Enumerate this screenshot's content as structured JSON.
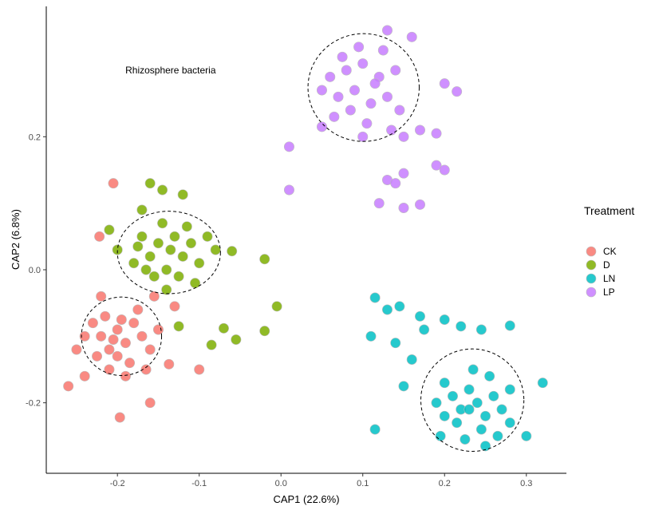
{
  "chart_data": {
    "type": "scatter",
    "title": "",
    "annotation": {
      "text": "Rhizosphere bacteria",
      "x": -0.135,
      "y": 0.3
    },
    "xlabel": "CAP1 (22.6%)",
    "ylabel": "CAP2 (6.8%)",
    "xlim": [
      -0.287,
      0.349
    ],
    "ylim": [
      -0.306,
      0.396
    ],
    "xticks": [
      -0.2,
      -0.1,
      0.0,
      0.1,
      0.2,
      0.3
    ],
    "xtick_labels": [
      "-0.2",
      "-0.1",
      "0.0",
      "0.1",
      "0.2",
      "0.3"
    ],
    "yticks": [
      -0.2,
      0.0,
      0.2
    ],
    "ytick_labels": [
      "-0.2",
      "0.0",
      "0.2"
    ],
    "grid": false,
    "legend": {
      "title": "Treatment",
      "placement": "right"
    },
    "series": [
      {
        "name": "CK",
        "color": "#F8766D",
        "ellipse": {
          "cx": -0.195,
          "cy": -0.1,
          "rx": 0.049,
          "ry": 0.059
        },
        "points": [
          [
            -0.205,
            0.13
          ],
          [
            -0.222,
            0.05
          ],
          [
            -0.26,
            -0.175
          ],
          [
            -0.197,
            -0.222
          ],
          [
            -0.137,
            -0.142
          ],
          [
            -0.1,
            -0.15
          ],
          [
            -0.16,
            -0.2
          ],
          [
            -0.24,
            -0.16
          ],
          [
            -0.25,
            -0.12
          ],
          [
            -0.13,
            -0.055
          ],
          [
            -0.155,
            -0.04
          ],
          [
            -0.22,
            -0.04
          ],
          [
            -0.23,
            -0.08
          ],
          [
            -0.22,
            -0.1
          ],
          [
            -0.21,
            -0.12
          ],
          [
            -0.2,
            -0.09
          ],
          [
            -0.19,
            -0.11
          ],
          [
            -0.18,
            -0.08
          ],
          [
            -0.17,
            -0.1
          ],
          [
            -0.2,
            -0.13
          ],
          [
            -0.185,
            -0.14
          ],
          [
            -0.215,
            -0.07
          ],
          [
            -0.16,
            -0.12
          ],
          [
            -0.175,
            -0.06
          ],
          [
            -0.205,
            -0.105
          ],
          [
            -0.195,
            -0.075
          ],
          [
            -0.225,
            -0.13
          ],
          [
            -0.15,
            -0.09
          ],
          [
            -0.24,
            -0.1
          ],
          [
            -0.19,
            -0.16
          ],
          [
            -0.165,
            -0.15
          ],
          [
            -0.21,
            -0.15
          ]
        ]
      },
      {
        "name": "D",
        "color": "#7CAE00",
        "ellipse": {
          "cx": -0.137,
          "cy": 0.026,
          "rx": 0.063,
          "ry": 0.062
        },
        "points": [
          [
            -0.16,
            0.13
          ],
          [
            -0.145,
            0.12
          ],
          [
            -0.12,
            0.113
          ],
          [
            -0.06,
            0.028
          ],
          [
            -0.02,
            0.016
          ],
          [
            -0.005,
            -0.055
          ],
          [
            -0.02,
            -0.092
          ],
          [
            -0.07,
            -0.088
          ],
          [
            -0.055,
            -0.105
          ],
          [
            -0.085,
            -0.113
          ],
          [
            -0.125,
            -0.085
          ],
          [
            -0.21,
            0.06
          ],
          [
            -0.2,
            0.03
          ],
          [
            -0.17,
            0.09
          ],
          [
            -0.17,
            0.05
          ],
          [
            -0.16,
            0.02
          ],
          [
            -0.15,
            0.04
          ],
          [
            -0.14,
            0.0
          ],
          [
            -0.13,
            0.05
          ],
          [
            -0.12,
            0.02
          ],
          [
            -0.11,
            0.04
          ],
          [
            -0.1,
            0.01
          ],
          [
            -0.145,
            0.07
          ],
          [
            -0.125,
            -0.01
          ],
          [
            -0.155,
            -0.01
          ],
          [
            -0.18,
            0.01
          ],
          [
            -0.09,
            0.05
          ],
          [
            -0.135,
            0.03
          ],
          [
            -0.115,
            0.065
          ],
          [
            -0.165,
            0.0
          ],
          [
            -0.105,
            -0.02
          ],
          [
            -0.175,
            0.035
          ],
          [
            -0.14,
            -0.03
          ],
          [
            -0.08,
            0.03
          ]
        ]
      },
      {
        "name": "LN",
        "color": "#00BFC4",
        "ellipse": {
          "cx": 0.234,
          "cy": -0.196,
          "rx": 0.063,
          "ry": 0.077
        },
        "points": [
          [
            0.115,
            -0.042
          ],
          [
            0.13,
            -0.06
          ],
          [
            0.145,
            -0.055
          ],
          [
            0.17,
            -0.07
          ],
          [
            0.175,
            -0.09
          ],
          [
            0.2,
            -0.075
          ],
          [
            0.22,
            -0.085
          ],
          [
            0.245,
            -0.09
          ],
          [
            0.28,
            -0.084
          ],
          [
            0.115,
            -0.24
          ],
          [
            0.11,
            -0.1
          ],
          [
            0.14,
            -0.11
          ],
          [
            0.16,
            -0.135
          ],
          [
            0.32,
            -0.17
          ],
          [
            0.3,
            -0.25
          ],
          [
            0.195,
            -0.25
          ],
          [
            0.15,
            -0.175
          ],
          [
            0.2,
            -0.17
          ],
          [
            0.21,
            -0.19
          ],
          [
            0.22,
            -0.21
          ],
          [
            0.23,
            -0.18
          ],
          [
            0.24,
            -0.2
          ],
          [
            0.25,
            -0.22
          ],
          [
            0.26,
            -0.19
          ],
          [
            0.27,
            -0.21
          ],
          [
            0.215,
            -0.23
          ],
          [
            0.235,
            -0.15
          ],
          [
            0.255,
            -0.16
          ],
          [
            0.28,
            -0.23
          ],
          [
            0.2,
            -0.22
          ],
          [
            0.245,
            -0.24
          ],
          [
            0.225,
            -0.255
          ],
          [
            0.265,
            -0.25
          ],
          [
            0.19,
            -0.2
          ],
          [
            0.28,
            -0.18
          ],
          [
            0.23,
            -0.21
          ],
          [
            0.25,
            -0.265
          ]
        ]
      },
      {
        "name": "LP",
        "color": "#C77CFF",
        "ellipse": {
          "cx": 0.101,
          "cy": 0.274,
          "rx": 0.068,
          "ry": 0.081
        },
        "points": [
          [
            0.01,
            0.185
          ],
          [
            0.01,
            0.12
          ],
          [
            0.13,
            0.135
          ],
          [
            0.14,
            0.13
          ],
          [
            0.15,
            0.145
          ],
          [
            0.15,
            0.093
          ],
          [
            0.17,
            0.098
          ],
          [
            0.19,
            0.157
          ],
          [
            0.2,
            0.15
          ],
          [
            0.17,
            0.21
          ],
          [
            0.19,
            0.205
          ],
          [
            0.16,
            0.35
          ],
          [
            0.13,
            0.36
          ],
          [
            0.2,
            0.28
          ],
          [
            0.215,
            0.268
          ],
          [
            0.05,
            0.215
          ],
          [
            0.12,
            0.1
          ],
          [
            0.15,
            0.2
          ],
          [
            0.06,
            0.29
          ],
          [
            0.07,
            0.26
          ],
          [
            0.08,
            0.3
          ],
          [
            0.09,
            0.27
          ],
          [
            0.1,
            0.31
          ],
          [
            0.11,
            0.25
          ],
          [
            0.12,
            0.29
          ],
          [
            0.13,
            0.26
          ],
          [
            0.14,
            0.3
          ],
          [
            0.085,
            0.24
          ],
          [
            0.105,
            0.22
          ],
          [
            0.125,
            0.33
          ],
          [
            0.095,
            0.335
          ],
          [
            0.065,
            0.23
          ],
          [
            0.145,
            0.24
          ],
          [
            0.05,
            0.27
          ],
          [
            0.115,
            0.28
          ],
          [
            0.075,
            0.32
          ],
          [
            0.135,
            0.21
          ],
          [
            0.1,
            0.2
          ]
        ]
      }
    ]
  }
}
